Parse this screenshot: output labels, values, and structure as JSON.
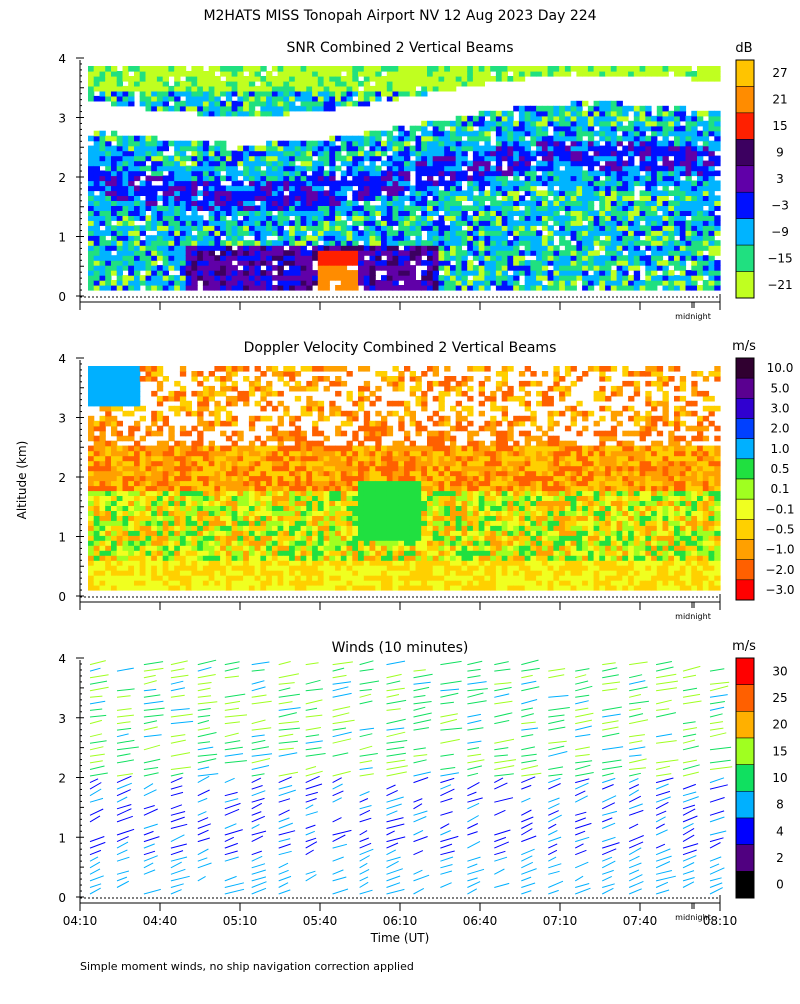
{
  "title": "M2HATS MISS Tonopah Airport NV  12 Aug 2023 Day 224",
  "ylabel": "Altitude (km)",
  "xlabel": "Time (UT)",
  "midnight_label": "midnight",
  "footnote": "Simple moment winds, no ship navigation correction applied",
  "chart_data": [
    {
      "type": "heatmap",
      "title": "SNR Combined 2 Vertical Beams",
      "unit": "dB",
      "yticks": [
        "0",
        "1",
        "2",
        "3",
        "4"
      ],
      "ylim": [
        0,
        4
      ],
      "colorbar": {
        "labels": [
          "27",
          "21",
          "15",
          "9",
          "3",
          "−3",
          "−9",
          "−15",
          "−21"
        ],
        "colors": [
          "#ffc400",
          "#ff8c00",
          "#ff2000",
          "#3c0060",
          "#6000a8",
          "#0010ff",
          "#00b4ff",
          "#20e080",
          "#c0ff20"
        ]
      },
      "layers": [
        {
          "desc": "weak (no data)",
          "altitude_km": [
            3.1,
            3.6
          ],
          "snr_db": "< -21"
        },
        {
          "desc": "strong layer",
          "altitude_km": [
            1.6,
            2.4
          ],
          "snr_db": [
            -3,
            3
          ]
        },
        {
          "desc": "surface peak near 05:50",
          "altitude_km": [
            0.1,
            0.9
          ],
          "snr_db": [
            15,
            27
          ]
        }
      ]
    },
    {
      "type": "heatmap",
      "title": "Doppler Velocity Combined 2 Vertical Beams",
      "unit": "m/s",
      "yticks": [
        "0",
        "1",
        "2",
        "3",
        "4"
      ],
      "ylim": [
        0,
        4
      ],
      "colorbar": {
        "labels": [
          "10.0",
          "5.0",
          "3.0",
          "2.0",
          "1.0",
          "0.5",
          "0.1",
          "−0.1",
          "−0.5",
          "−1.0",
          "−2.0",
          "−3.0"
        ],
        "colors": [
          "#300030",
          "#5a0090",
          "#3000d0",
          "#0040ff",
          "#00b0ff",
          "#20e040",
          "#a0ff20",
          "#f0ff20",
          "#ffd000",
          "#ffa000",
          "#ff6000",
          "#ff0000"
        ]
      }
    },
    {
      "type": "barbs",
      "title": "Winds (10 minutes)",
      "unit": "m/s",
      "yticks": [
        "0",
        "1",
        "2",
        "3",
        "4"
      ],
      "ylim": [
        0,
        4
      ],
      "xticks": [
        "04:10",
        "04:40",
        "05:10",
        "05:40",
        "06:10",
        "06:40",
        "07:10",
        "07:40",
        "08:10"
      ],
      "colorbar": {
        "labels": [
          "30",
          "25",
          "20",
          "15",
          "10",
          "8",
          "4",
          "2",
          "0"
        ],
        "colors": [
          "#ff0000",
          "#ff6000",
          "#ffb000",
          "#a0ff20",
          "#10e060",
          "#00b0ff",
          "#0000ff",
          "#500080",
          "#000000"
        ]
      }
    }
  ]
}
